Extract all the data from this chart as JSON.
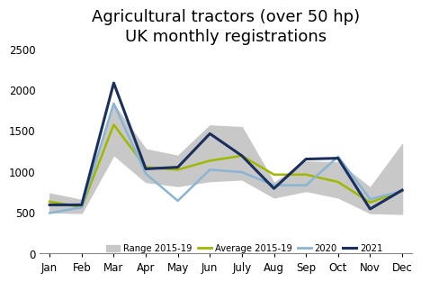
{
  "title": "Agricultural tractors (over 50 hp)\nUK monthly registrations",
  "months": [
    "Jan",
    "Feb",
    "Mar",
    "Apr",
    "May",
    "Jun",
    "July",
    "Aug",
    "Sep",
    "Oct",
    "Nov",
    "Dec"
  ],
  "avg_2015_19": [
    630,
    560,
    1570,
    1050,
    1020,
    1130,
    1190,
    960,
    960,
    870,
    620,
    760
  ],
  "range_low": [
    500,
    490,
    1200,
    870,
    820,
    880,
    900,
    680,
    760,
    680,
    490,
    480
  ],
  "range_high": [
    730,
    650,
    1820,
    1270,
    1190,
    1560,
    1540,
    860,
    1120,
    1110,
    800,
    1330
  ],
  "data_2020": [
    490,
    560,
    1830,
    970,
    640,
    1020,
    990,
    830,
    830,
    1180,
    660,
    760
  ],
  "data_2021": [
    590,
    590,
    2080,
    1030,
    1050,
    1460,
    1190,
    790,
    1150,
    1160,
    540,
    770
  ],
  "color_avg": "#a0b800",
  "color_2020": "#8ab4d4",
  "color_2021": "#1a2f5e",
  "color_range": "#c8c8c8",
  "ylim": [
    0,
    2500
  ],
  "yticks": [
    0,
    500,
    1000,
    1500,
    2000,
    2500
  ],
  "title_fontsize": 13,
  "tick_fontsize": 8.5,
  "bg_color": "#ffffff"
}
